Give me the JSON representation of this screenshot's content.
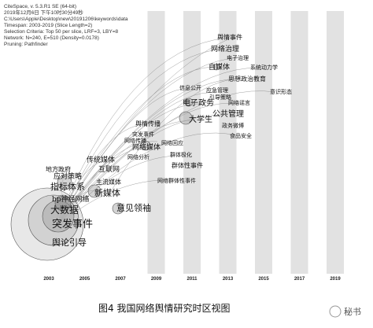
{
  "header_info": [
    "CiteSpace, v. 5.3.R1 SE (64-bit)",
    "2019年12月6日 下午10时30分49秒",
    "C:\\Users\\Apple\\Desktop\\new\\20191206\\keywords\\data",
    "Timespan: 2003-2019 (Slice Length=2)",
    "Selection Criteria: Top 50 per slice, LRF=3, LBY=8",
    "Network: N=240, E=510 (Density=0.0178)",
    "Pruning: Pathfinder"
  ],
  "years": [
    "2003",
    "2005",
    "2007",
    "2009",
    "2011",
    "2013",
    "2015",
    "2017",
    "2019"
  ],
  "nodes": [
    {
      "label": "舆情事件"
    },
    {
      "label": "网络治理"
    },
    {
      "label": "电子治理"
    },
    {
      "label": "自媒体"
    },
    {
      "label": "系统动力学"
    },
    {
      "label": "思想政治教育"
    },
    {
      "label": "信息公开"
    },
    {
      "label": "应急管理"
    },
    {
      "label": "引导策略"
    },
    {
      "label": "意识形态"
    },
    {
      "label": "电子政务"
    },
    {
      "label": "网络谣言"
    },
    {
      "label": "公共管理"
    },
    {
      "label": "大学生"
    },
    {
      "label": "政务微博"
    },
    {
      "label": "舆情传播"
    },
    {
      "label": "食品安全"
    },
    {
      "label": "突发事件"
    },
    {
      "label": "网络传播"
    },
    {
      "label": "网络回应"
    },
    {
      "label": "网络媒体"
    },
    {
      "label": "网络分析"
    },
    {
      "label": "群体极化"
    },
    {
      "label": "传统媒体"
    },
    {
      "label": "群体性事件"
    },
    {
      "label": "网络群体性事件"
    },
    {
      "label": "地方政府"
    },
    {
      "label": "互联网"
    },
    {
      "label": "应对策略"
    },
    {
      "label": "指标体系"
    },
    {
      "label": "主流媒体"
    },
    {
      "label": "bp神经网络"
    },
    {
      "label": "新媒体"
    },
    {
      "label": "意见领袖"
    },
    {
      "label": "大数据"
    },
    {
      "label": "突发事件"
    },
    {
      "label": "舆论引导"
    }
  ],
  "caption": "图4  我国网络舆情研究时区视图",
  "watermark": "秘书"
}
